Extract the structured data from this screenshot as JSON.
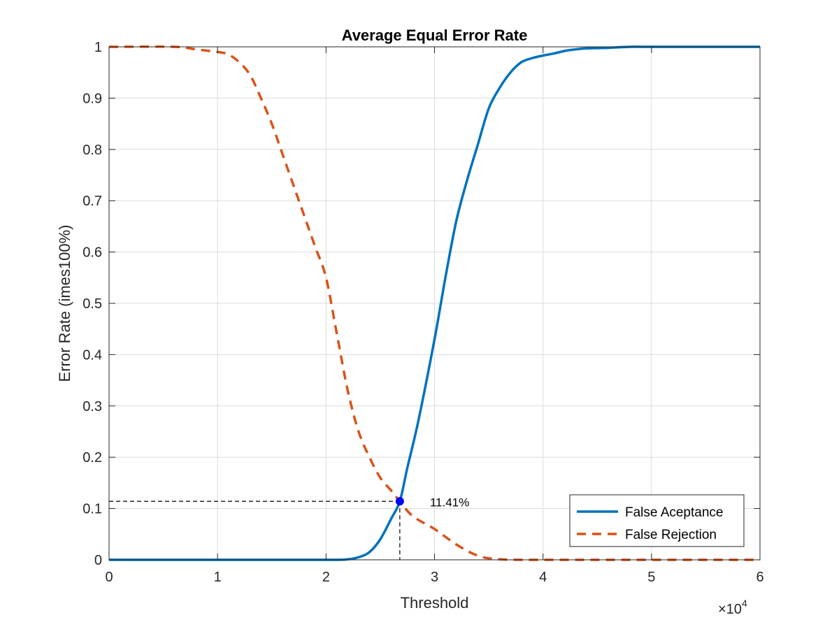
{
  "chart_data": {
    "type": "line",
    "title": "Average Equal Error Rate",
    "xlabel": "Threshold",
    "ylabel": "Error Rate (imes100%)",
    "x_multiplier_label": "×10",
    "x_multiplier_exponent": "4",
    "xlim": [
      0,
      6
    ],
    "ylim": [
      0,
      1
    ],
    "xticks": [
      0,
      1,
      2,
      3,
      4,
      5,
      6
    ],
    "xtick_labels": [
      "0",
      "1",
      "2",
      "3",
      "4",
      "5",
      "6"
    ],
    "yticks": [
      0,
      0.1,
      0.2,
      0.3,
      0.4,
      0.5,
      0.6,
      0.7,
      0.8,
      0.9,
      1
    ],
    "ytick_labels": [
      "0",
      "0.1",
      "0.2",
      "0.3",
      "0.4",
      "0.5",
      "0.6",
      "0.7",
      "0.8",
      "0.9",
      "1"
    ],
    "grid": true,
    "legend_position": "bottom-right",
    "series": [
      {
        "name": "False Aceptance",
        "style": "solid",
        "color": "#0072BD",
        "x": [
          0,
          1,
          2,
          2.2,
          2.3,
          2.4,
          2.5,
          2.6,
          2.68,
          2.75,
          2.85,
          3.0,
          3.1,
          3.2,
          3.3,
          3.4,
          3.5,
          3.6,
          3.7,
          3.8,
          3.9,
          4.0,
          4.1,
          4.2,
          4.3,
          4.4,
          4.6,
          4.8,
          5.0,
          6.0
        ],
        "y": [
          0,
          0,
          0,
          0.001,
          0.005,
          0.015,
          0.04,
          0.08,
          0.1141,
          0.18,
          0.27,
          0.43,
          0.55,
          0.66,
          0.74,
          0.81,
          0.88,
          0.92,
          0.95,
          0.97,
          0.978,
          0.983,
          0.987,
          0.992,
          0.995,
          0.997,
          0.998,
          1.0,
          1.0,
          1.0
        ]
      },
      {
        "name": "False Rejection",
        "style": "dashed",
        "color": "#D95319",
        "x": [
          0,
          0.6,
          0.8,
          1.0,
          1.1,
          1.2,
          1.3,
          1.4,
          1.5,
          1.6,
          1.7,
          1.8,
          1.9,
          2.0,
          2.1,
          2.2,
          2.3,
          2.4,
          2.5,
          2.6,
          2.68,
          2.8,
          3.0,
          3.2,
          3.4,
          3.6,
          4.0,
          5.0,
          6.0
        ],
        "y": [
          1.0,
          1.0,
          0.995,
          0.99,
          0.985,
          0.97,
          0.945,
          0.9,
          0.85,
          0.79,
          0.73,
          0.67,
          0.61,
          0.55,
          0.44,
          0.33,
          0.25,
          0.2,
          0.16,
          0.135,
          0.1141,
          0.085,
          0.06,
          0.03,
          0.008,
          0.001,
          0.0,
          0.0,
          0.0
        ]
      }
    ],
    "eer_point": {
      "x": 2.68,
      "y": 0.1141,
      "label": "11.41%"
    }
  }
}
